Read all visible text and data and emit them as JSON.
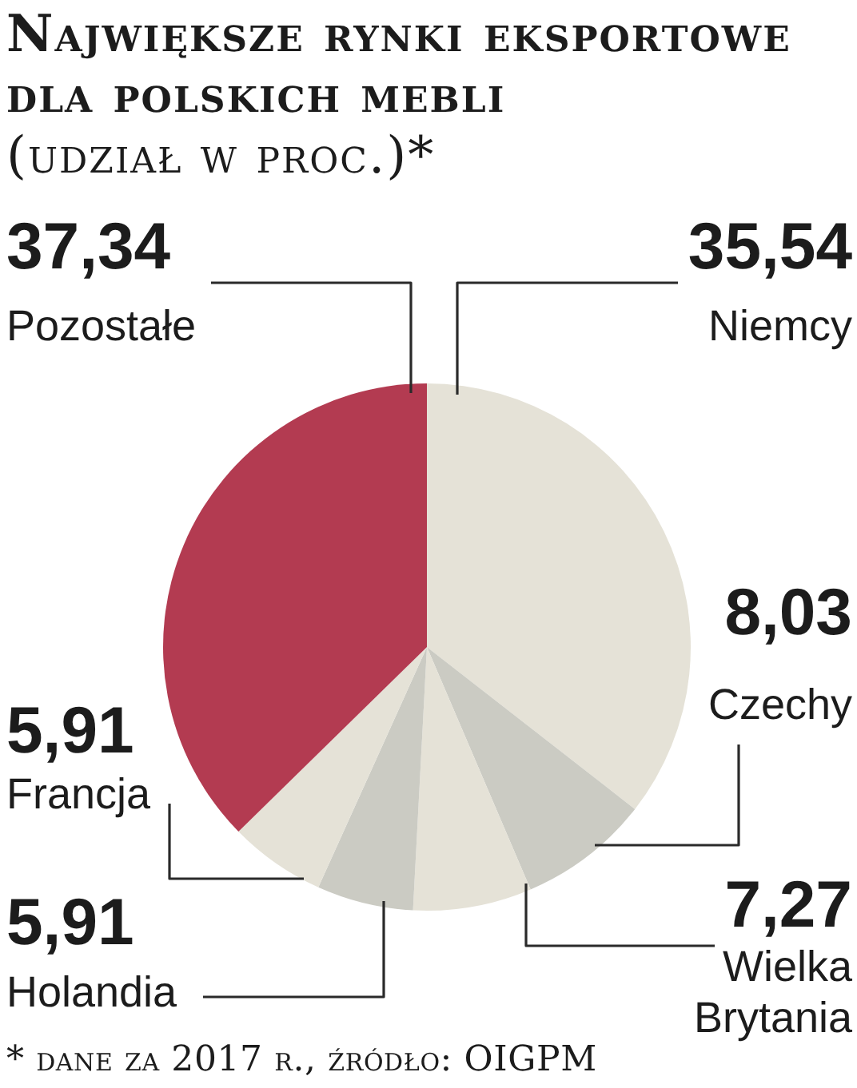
{
  "chart_data": {
    "type": "pie",
    "title": "Największe rynki eksportowe dla polskich mebli",
    "subtitle": "(udział w proc.)*",
    "categories": [
      "Niemcy",
      "Czechy",
      "Wielka Brytania",
      "Holandia",
      "Francja",
      "Pozostałe"
    ],
    "values": [
      35.54,
      8.03,
      7.27,
      5.91,
      5.91,
      37.34
    ],
    "value_labels": [
      "35,54",
      "8,03",
      "7,27",
      "5,91",
      "5,91",
      "37,34"
    ],
    "colors": [
      "#e5e2d7",
      "#cbcbc3",
      "#e5e2d7",
      "#cbcbc3",
      "#e5e2d7",
      "#b33b51"
    ],
    "annotations": [
      "* dane za 2017 r., źródło: OIGPM"
    ]
  }
}
